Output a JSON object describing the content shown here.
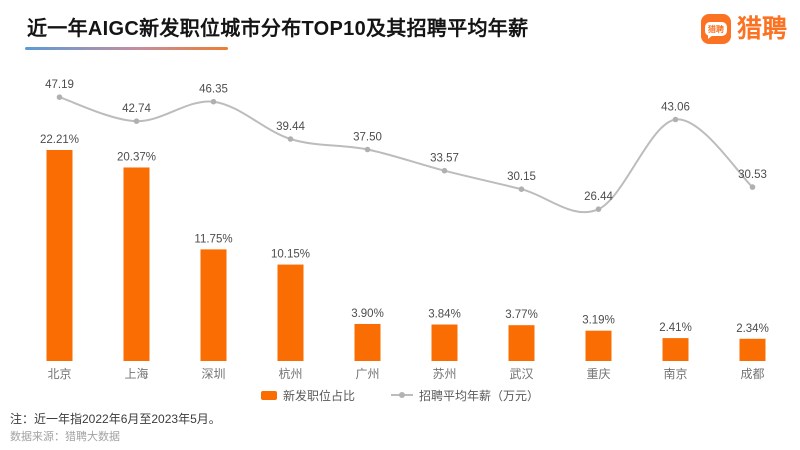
{
  "header": {
    "title": "近一年AIGC新发职位城市分布TOP10及其招聘平均年薪",
    "logo": {
      "bubble_text": "猎聘",
      "wordmark": "猎聘"
    }
  },
  "legend": {
    "bar_label": "新发职位占比",
    "line_label": "招聘平均年薪（万元）"
  },
  "footer": {
    "note": "注：近一年指2022年6月至2023年5月。",
    "source": "数据来源：猎聘大数据"
  },
  "colors": {
    "bar": "#f96d02",
    "line": "#bcbcbc",
    "dot": "#b0b0b0",
    "value_label": "#4d4d4d",
    "axis_label": "#737373",
    "brand": "#fb7222",
    "underline_start": "#5b9bd5",
    "underline_end": "#ed7d31"
  },
  "chart_data": {
    "type": "bar",
    "combo": "bar+line",
    "title": "近一年AIGC新发职位城市分布TOP10及其招聘平均年薪",
    "categories": [
      "北京",
      "上海",
      "深圳",
      "杭州",
      "广州",
      "苏州",
      "武汉",
      "重庆",
      "南京",
      "成都"
    ],
    "series": [
      {
        "name": "新发职位占比",
        "type": "bar",
        "unit": "%",
        "values": [
          22.21,
          20.37,
          11.75,
          10.15,
          3.9,
          3.84,
          3.77,
          3.19,
          2.41,
          2.34
        ]
      },
      {
        "name": "招聘平均年薪（万元）",
        "type": "line",
        "unit": "万元",
        "values": [
          47.19,
          42.74,
          46.35,
          39.44,
          37.5,
          33.57,
          30.15,
          26.44,
          43.06,
          30.53
        ]
      }
    ],
    "value_labels_visible": true,
    "grid": false,
    "legend_position": "bottom"
  }
}
